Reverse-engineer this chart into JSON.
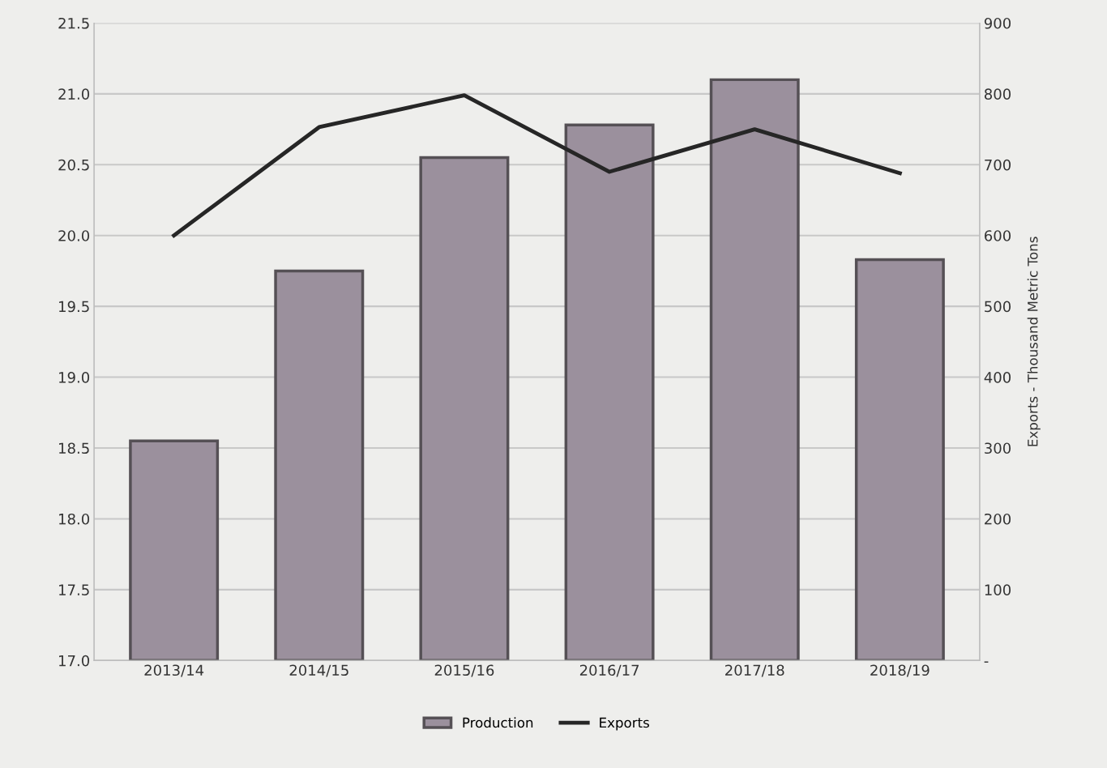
{
  "chart_data": {
    "type": "bar",
    "y2label": "Exports - Thousand Metric Tons",
    "categories": [
      "2013/14",
      "2014/15",
      "2015/16",
      "2016/17",
      "2017/18",
      "2018/19"
    ],
    "series": [
      {
        "name": "Production",
        "color": "#9b909d",
        "values": [
          18.55,
          19.75,
          20.55,
          20.78,
          21.1,
          19.83
        ]
      },
      {
        "name": "Exports",
        "type": "line",
        "axis": "y2",
        "color": "#262626",
        "values": [
          600,
          753,
          798,
          690,
          750,
          688
        ]
      }
    ],
    "ylim": [
      17.0,
      21.5
    ],
    "yticks": [
      {
        "value": 17.0,
        "label": "17.0"
      },
      {
        "value": 17.5,
        "label": "17.5"
      },
      {
        "value": 18.0,
        "label": "18.0"
      },
      {
        "value": 18.5,
        "label": "18.5"
      },
      {
        "value": 19.0,
        "label": "19.0"
      },
      {
        "value": 19.5,
        "label": "19.5"
      },
      {
        "value": 20.0,
        "label": "20.0"
      },
      {
        "value": 20.5,
        "label": "20.5"
      },
      {
        "value": 21.0,
        "label": "21.0"
      },
      {
        "value": 21.5,
        "label": "21.5"
      }
    ],
    "y2lim": [
      0,
      900
    ],
    "y2ticks": [
      {
        "value": 0,
        "label": "-"
      },
      100,
      200,
      300,
      400,
      500,
      600,
      700,
      800,
      900
    ],
    "grid": "y",
    "legend": "bottom",
    "marker": "none",
    "line_style": "solid"
  }
}
